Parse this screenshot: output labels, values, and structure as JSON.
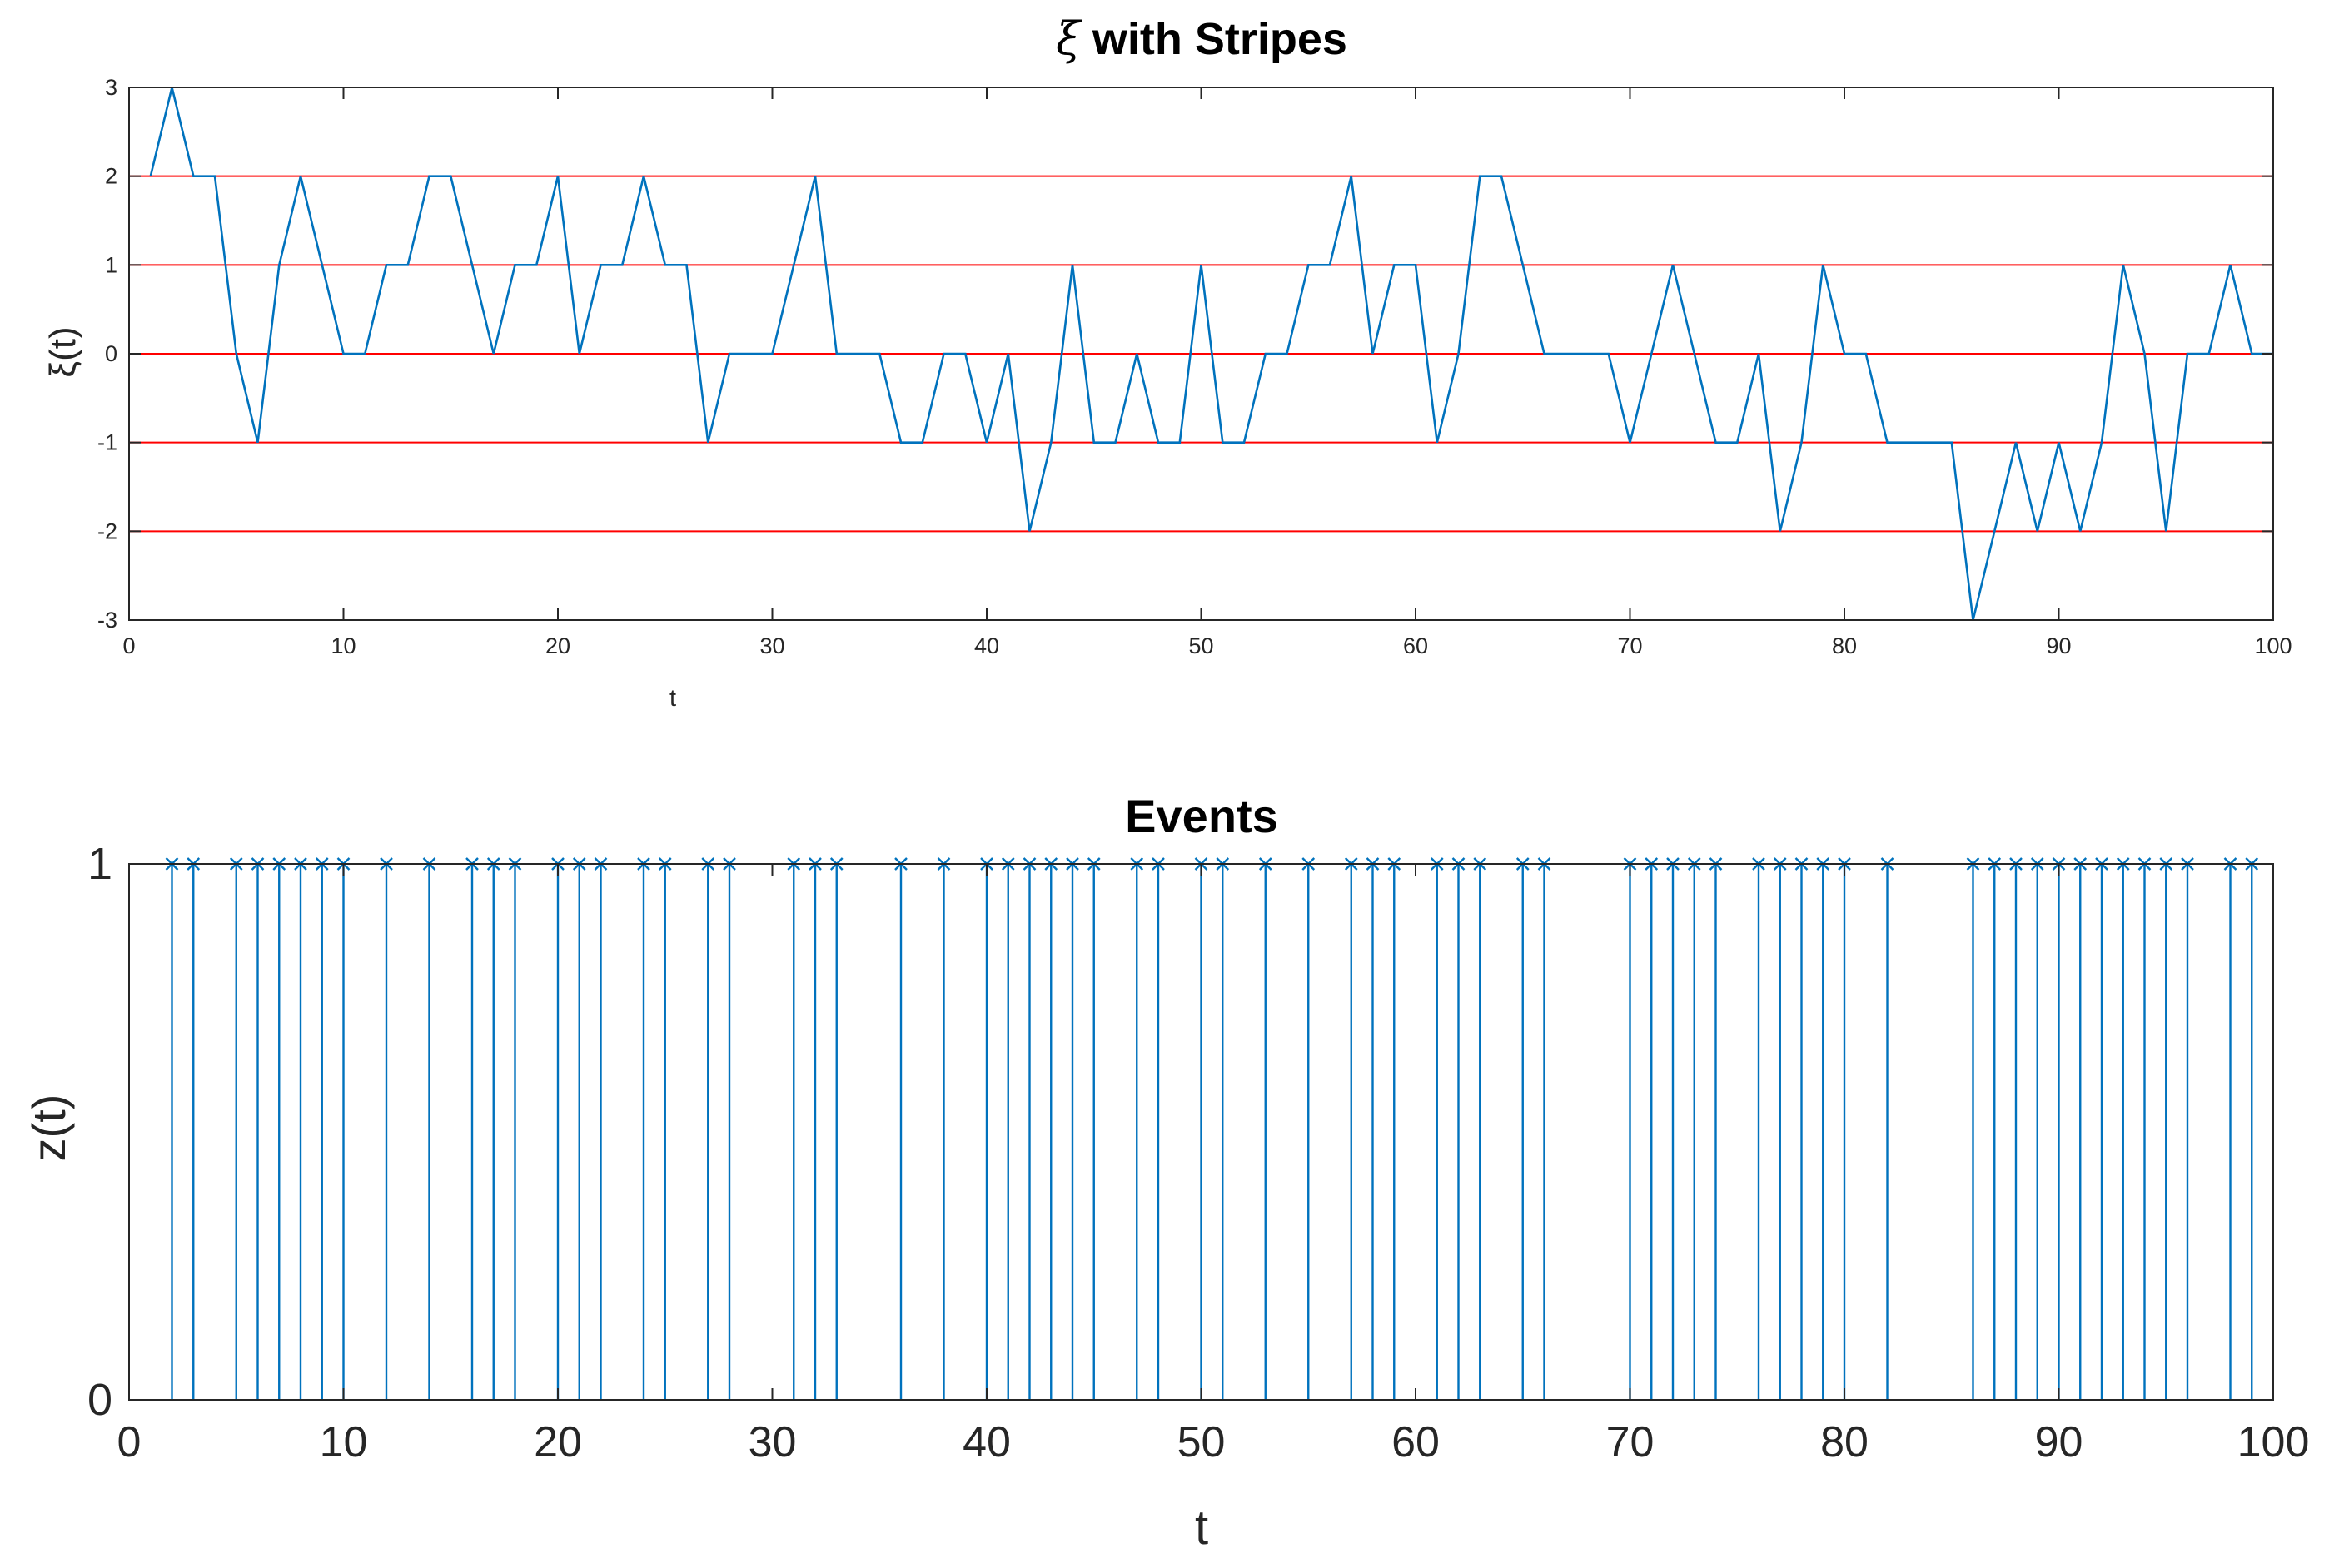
{
  "chart_data": [
    {
      "type": "line",
      "title": "ξ with Stripes",
      "title_symbol": "ξ",
      "title_text": "with Stripes",
      "xlabel": "t",
      "ylabel": "ξ(t)",
      "xlim": [
        0,
        100
      ],
      "ylim": [
        -3,
        3
      ],
      "xticks": [
        0,
        10,
        20,
        30,
        40,
        50,
        60,
        70,
        80,
        90,
        100
      ],
      "yticks": [
        -3,
        -2,
        -1,
        0,
        1,
        2,
        3
      ],
      "stripes": [
        -2,
        -1,
        0,
        1,
        2
      ],
      "stripe_color": "#ff0000",
      "series": [
        {
          "name": "ξ(t)",
          "color": "#0072bd",
          "x": [
            1,
            2,
            3,
            4,
            5,
            6,
            7,
            8,
            9,
            10,
            11,
            12,
            13,
            14,
            15,
            16,
            17,
            18,
            19,
            20,
            21,
            22,
            23,
            24,
            25,
            26,
            27,
            28,
            29,
            30,
            31,
            32,
            33,
            34,
            35,
            36,
            37,
            38,
            39,
            40,
            41,
            42,
            43,
            44,
            45,
            46,
            47,
            48,
            49,
            50,
            51,
            52,
            53,
            54,
            55,
            56,
            57,
            58,
            59,
            60,
            61,
            62,
            63,
            64,
            65,
            66,
            67,
            68,
            69,
            70,
            71,
            72,
            73,
            74,
            75,
            76,
            77,
            78,
            79,
            80,
            81,
            82,
            83,
            84,
            85,
            86,
            87,
            88,
            89,
            90,
            91,
            92,
            93,
            94,
            95,
            96,
            97,
            98,
            99,
            100
          ],
          "values": [
            2,
            3,
            2,
            2,
            0,
            -1,
            1,
            2,
            1,
            0,
            0,
            1,
            1,
            2,
            2,
            1,
            0,
            1,
            1,
            2,
            0,
            1,
            1,
            2,
            1,
            1,
            -1,
            0,
            0,
            0,
            1,
            2,
            0,
            0,
            0,
            -1,
            -1,
            0,
            0,
            -1,
            0,
            -2,
            -1,
            1,
            -1,
            -1,
            0,
            -1,
            -1,
            1,
            -1,
            -1,
            0,
            0,
            1,
            1,
            2,
            0,
            1,
            1,
            -1,
            0,
            2,
            2,
            1,
            0,
            0,
            0,
            0,
            -1,
            0,
            1,
            0,
            -1,
            -1,
            0,
            -2,
            -1,
            1,
            0,
            0,
            -1,
            -1,
            -1,
            -1,
            -3,
            -2,
            -1,
            -2,
            -1,
            -2,
            -1,
            1,
            0,
            -2,
            0,
            0,
            1,
            0,
            0
          ]
        }
      ]
    },
    {
      "type": "stem",
      "title": "Events",
      "xlabel": "t",
      "ylabel": "z(t)",
      "xlim": [
        0,
        100
      ],
      "ylim": [
        0,
        1
      ],
      "xticks": [
        0,
        10,
        20,
        30,
        40,
        50,
        60,
        70,
        80,
        90,
        100
      ],
      "yticks": [
        0,
        1
      ],
      "marker": "x",
      "series": [
        {
          "name": "z(t)",
          "color": "#0072bd",
          "x": [
            2,
            3,
            5,
            6,
            7,
            8,
            9,
            10,
            12,
            14,
            16,
            17,
            18,
            20,
            21,
            22,
            24,
            25,
            27,
            28,
            31,
            32,
            33,
            36,
            38,
            40,
            41,
            42,
            43,
            44,
            45,
            47,
            48,
            50,
            51,
            53,
            55,
            57,
            58,
            59,
            61,
            62,
            63,
            65,
            66,
            70,
            71,
            72,
            73,
            74,
            76,
            77,
            78,
            79,
            80,
            82,
            86,
            87,
            88,
            89,
            90,
            91,
            92,
            93,
            94,
            95,
            96,
            98,
            99
          ],
          "value": 1
        }
      ]
    }
  ]
}
